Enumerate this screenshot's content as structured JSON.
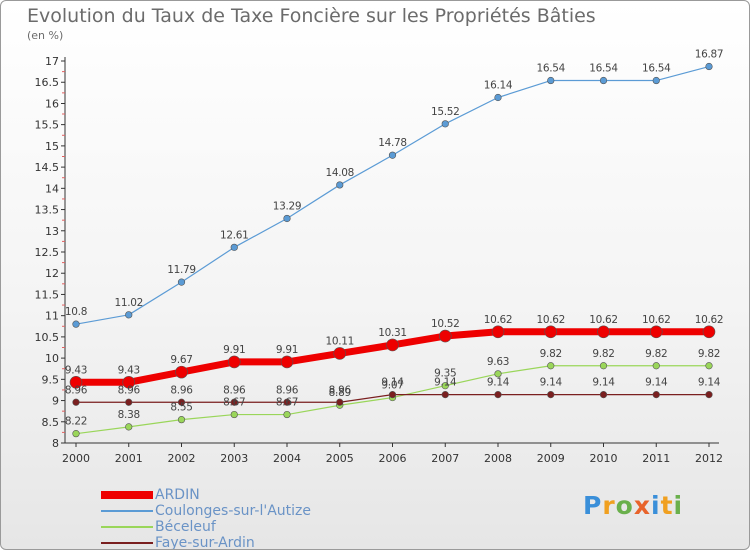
{
  "chart_data": {
    "type": "line",
    "title": "Evolution du Taux de Taxe Foncière sur les Propriétés Bâties",
    "subtitle": "(en %)",
    "x": [
      "2000",
      "2001",
      "2002",
      "2003",
      "2004",
      "2005",
      "2006",
      "2007",
      "2008",
      "2009",
      "2010",
      "2011",
      "2012"
    ],
    "ylim": [
      8,
      17
    ],
    "yticks": [
      "8",
      "8.5",
      "9",
      "9.5",
      "10",
      "10.5",
      "11",
      "11.5",
      "12",
      "12.5",
      "13",
      "13.5",
      "14",
      "14.5",
      "15",
      "15.5",
      "16",
      "16.5",
      "17"
    ],
    "series": [
      {
        "name": "ARDIN",
        "color": "#ee0000",
        "values": [
          9.43,
          9.43,
          9.67,
          9.91,
          9.91,
          10.11,
          10.31,
          10.52,
          10.62,
          10.62,
          10.62,
          10.62,
          10.62
        ],
        "labels": [
          "9.43",
          "9.43",
          "9.67",
          "9.91",
          "9.91",
          "10.11",
          "10.31",
          "10.52",
          "10.62",
          "10.62",
          "10.62",
          "10.62",
          "10.62"
        ]
      },
      {
        "name": "Coulonges-sur-l'Autize",
        "color": "#5b9bd5",
        "values": [
          10.8,
          11.02,
          11.79,
          12.61,
          13.29,
          14.08,
          14.78,
          15.52,
          16.14,
          16.54,
          16.54,
          16.54,
          16.87
        ],
        "labels": [
          "10.8",
          "11.02",
          "11.79",
          "12.61",
          "13.29",
          "14.08",
          "14.78",
          "15.52",
          "16.14",
          "16.54",
          "16.54",
          "16.54",
          "16.87"
        ]
      },
      {
        "name": "Béceleuf",
        "color": "#9ad65a",
        "values": [
          8.22,
          8.38,
          8.55,
          8.67,
          8.67,
          8.89,
          9.07,
          9.35,
          9.63,
          9.82,
          9.82,
          9.82,
          9.82
        ],
        "labels": [
          "8.22",
          "8.38",
          "8.55",
          "8.67",
          "8.67",
          "8.89",
          "9.07",
          "9.35",
          "9.63",
          "9.82",
          "9.82",
          "9.82",
          "9.82"
        ]
      },
      {
        "name": "Faye-sur-Ardin",
        "color": "#7a1f1f",
        "values": [
          8.96,
          8.96,
          8.96,
          8.96,
          8.96,
          8.96,
          9.14,
          9.14,
          9.14,
          9.14,
          9.14,
          9.14,
          9.14
        ],
        "labels": [
          "8.96",
          "8.96",
          "8.96",
          "8.96",
          "8.96",
          "8.96",
          "9.14",
          "9.14",
          "9.14",
          "9.14",
          "9.14",
          "9.14",
          "9.14"
        ]
      }
    ],
    "grid": false,
    "legend": "bottom-left"
  },
  "logo": {
    "text": "Proxiti",
    "letters": [
      "P",
      "r",
      "o",
      "x",
      "i",
      "t",
      "i"
    ]
  }
}
